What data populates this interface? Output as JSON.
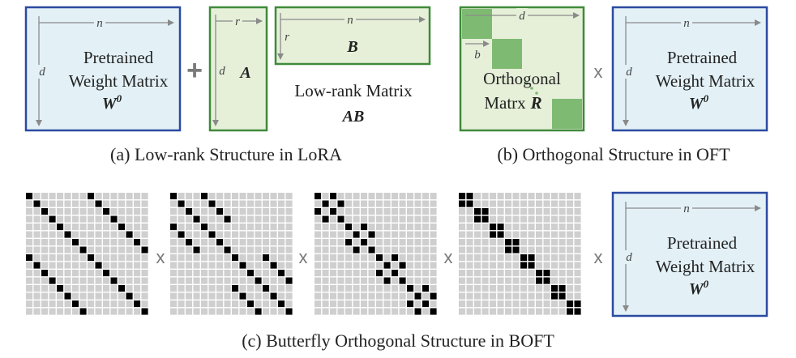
{
  "colors": {
    "blue_border": "#2b4aa0",
    "blue_fill": "#e3f1f7",
    "green_border": "#3f8a3a",
    "green_fill": "#e6f0d9",
    "green_block": "#7fba72",
    "dim_arrow": "#8a8a8a",
    "grid_light": "#cfcfcf",
    "grid_dark": "#000000",
    "operator": "#7a7a7a"
  },
  "operators": {
    "plus": "+",
    "times": "x"
  },
  "panel_a": {
    "caption": "(a) Low-rank Structure in LoRA",
    "pretrained": {
      "line1": "Pretrained",
      "line2": "Weight Matrix",
      "symbol": "W",
      "superscript": "0",
      "dim_n": "n",
      "dim_d": "d"
    },
    "matrix_a": {
      "label": "A",
      "dim_r": "r",
      "dim_d": "d"
    },
    "matrix_b": {
      "label": "B",
      "dim_n": "n",
      "dim_r": "r"
    },
    "lowrank": {
      "line1": "Low-rank Matrix",
      "line2": "AB"
    }
  },
  "panel_b": {
    "caption": "(b) Orthogonal Structure in OFT",
    "orthogonal": {
      "line1": "Orthogonal",
      "line2": "Matrx",
      "symbol": "R",
      "dim_d": "d",
      "dim_b": "b"
    },
    "pretrained": {
      "line1": "Pretrained",
      "line2": "Weight Matrix",
      "symbol": "W",
      "superscript": "0",
      "dim_n": "n",
      "dim_d": "d"
    }
  },
  "panel_c": {
    "caption": "(c) Butterfly Orthogonal Structure in BOFT",
    "grid_size": 16,
    "butterfly_strides": [
      8,
      4,
      2,
      1
    ],
    "pretrained": {
      "line1": "Pretrained",
      "line2": "Weight Matrix",
      "symbol": "W",
      "superscript": "0",
      "dim_n": "n",
      "dim_d": "d"
    }
  }
}
